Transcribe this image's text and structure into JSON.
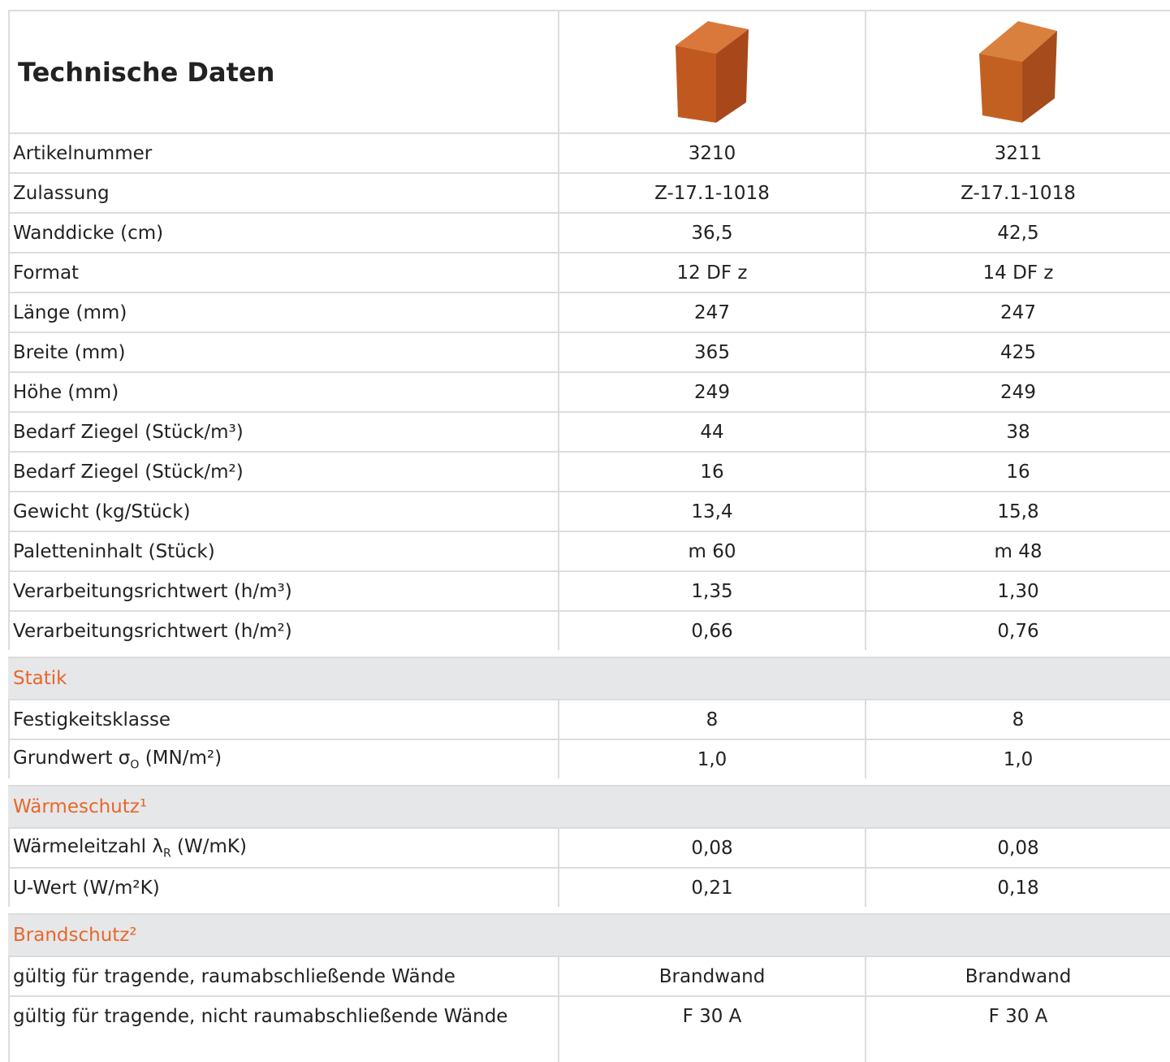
{
  "header": {
    "title": "Technische Daten"
  },
  "table": {
    "rows": [
      [
        "Artikelnummer",
        "3210",
        "3211"
      ],
      [
        "Zulassung",
        "Z-17.1-1018",
        "Z-17.1-1018"
      ],
      [
        "Wanddicke (cm)",
        "36,5",
        "42,5"
      ],
      [
        "Format",
        "12 DF z",
        "14 DF z"
      ],
      [
        "Länge (mm)",
        "247",
        "247"
      ],
      [
        "Breite (mm)",
        "365",
        "425"
      ],
      [
        "Höhe (mm)",
        "249",
        "249"
      ],
      [
        "Bedarf Ziegel (Stück/m³)",
        "44",
        "38"
      ],
      [
        "Bedarf Ziegel (Stück/m²)",
        "16",
        "16"
      ],
      [
        "Gewicht (kg/Stück)",
        "13,4",
        "15,8"
      ],
      [
        "Paletteninhalt (Stück)",
        "m 60",
        "m 48"
      ],
      [
        "Verarbeitungsrichtwert (h/m³)",
        "1,35",
        "1,30"
      ],
      [
        "Verarbeitungsrichtwert (h/m²)",
        "0,66",
        "0,76"
      ]
    ]
  },
  "sections": [
    {
      "title": "Statik",
      "rows": [
        [
          "Festigkeitsklasse",
          "8",
          "8"
        ],
        [
          {
            "text": "Grundwert σ",
            "sub": "O",
            "suffix": " (MN/m²)"
          },
          "1,0",
          "1,0"
        ]
      ]
    },
    {
      "title": "Wärmeschutz¹",
      "rows": [
        [
          {
            "text": "Wärmeleitzahl λ",
            "sub": "R",
            "suffix": " (W/mK)"
          },
          "0,08",
          "0,08"
        ],
        [
          "U-Wert (W/m²K)",
          "0,21",
          "0,18"
        ]
      ]
    },
    {
      "title": "Brandschutz²",
      "rows": [
        [
          "gültig für tragende, raumabschließende Wände",
          "Brandwand",
          "Brandwand"
        ],
        [
          "gültig für tragende, nicht raumabschließende Wände",
          "F 30 A",
          "F 30 A"
        ]
      ]
    }
  ]
}
